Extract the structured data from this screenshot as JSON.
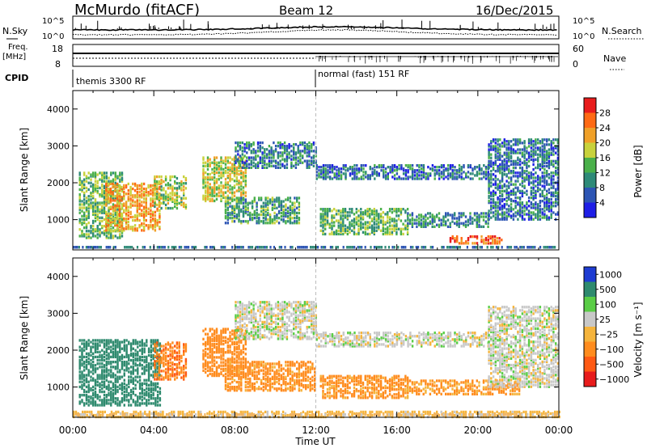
{
  "header": {
    "station": "McMurdo (fitACF)",
    "beam": "Beam 12",
    "date": "16/Dec/2015"
  },
  "status_panels": {
    "nsky_label": "N.Sky",
    "nsearch_label": "N.Search",
    "nsky_ticks": [
      "10^5",
      "10^0"
    ],
    "nsearch_ticks": [
      "10^5",
      "10^0"
    ],
    "freq_label": "Freq.",
    "freq_unit": "[MHz]",
    "freq_ticks": [
      "18",
      "8"
    ],
    "nave_label": "Nave",
    "nave_ticks": [
      "60",
      "0"
    ],
    "cpid_label": "CPID",
    "cpid_modes": [
      {
        "label": "themis 3300 RF",
        "start_hour": 0
      },
      {
        "label": "normal (fast) 151 RF",
        "start_hour": 12
      }
    ]
  },
  "colors": {
    "power": [
      "#1e1ee6",
      "#2d55b4",
      "#2e8a78",
      "#4ab04a",
      "#c8d23c",
      "#f0a028",
      "#ff6a14",
      "#e81c1c"
    ],
    "velocity": [
      "#e81c1c",
      "#ff5a14",
      "#ff8c1e",
      "#f5b43c",
      "#c8c8c8",
      "#5acd46",
      "#2e8a6e",
      "#1e3cd2"
    ],
    "ground": "#f0b464"
  },
  "chart_data": [
    {
      "type": "heatmap",
      "name": "power",
      "xlabel": "",
      "ylabel": "Slant Range [km]",
      "x_ticks": [
        "00:00",
        "04:00",
        "08:00",
        "12:00",
        "16:00",
        "20:00",
        "00:00"
      ],
      "xlim_hours": [
        0,
        24
      ],
      "ylim_km": [
        180,
        4500
      ],
      "y_ticks": [
        1000,
        2000,
        3000,
        4000
      ],
      "colorbar": {
        "label": "Power [dB]",
        "levels": [
          0,
          4,
          8,
          12,
          16,
          20,
          24,
          28,
          30
        ],
        "tick_labels": [
          "4",
          "8",
          "12",
          "16",
          "20",
          "24",
          "28"
        ]
      },
      "echo_regions": [
        {
          "t0": 0.3,
          "t1": 2.4,
          "r0": 500,
          "r1": 2300,
          "db": 14
        },
        {
          "t0": 1.6,
          "t1": 4.3,
          "r0": 700,
          "r1": 2000,
          "db": 22
        },
        {
          "t0": 4.0,
          "t1": 5.6,
          "r0": 1300,
          "r1": 2200,
          "db": 16
        },
        {
          "t0": 6.4,
          "t1": 8.6,
          "r0": 1500,
          "r1": 2700,
          "db": 18
        },
        {
          "t0": 7.5,
          "t1": 11.2,
          "r0": 900,
          "r1": 1600,
          "db": 12
        },
        {
          "t0": 8.0,
          "t1": 12.0,
          "r0": 2400,
          "r1": 3100,
          "db": 9
        },
        {
          "t0": 12.0,
          "t1": 20.5,
          "r0": 2100,
          "r1": 2500,
          "db": 8
        },
        {
          "t0": 12.2,
          "t1": 16.5,
          "r0": 600,
          "r1": 1300,
          "db": 14
        },
        {
          "t0": 16.5,
          "t1": 20.5,
          "r0": 800,
          "r1": 1200,
          "db": 10
        },
        {
          "t0": 20.5,
          "t1": 24.0,
          "r0": 1000,
          "r1": 3200,
          "db": 8
        },
        {
          "t0": 18.6,
          "t1": 21.2,
          "r0": 350,
          "r1": 550,
          "db": 26
        }
      ]
    },
    {
      "type": "heatmap",
      "name": "velocity",
      "xlabel": "Time UT",
      "ylabel": "Slant Range [km]",
      "x_ticks": [
        "00:00",
        "04:00",
        "08:00",
        "12:00",
        "16:00",
        "20:00",
        "00:00"
      ],
      "xlim_hours": [
        0,
        24
      ],
      "ylim_km": [
        180,
        4500
      ],
      "y_ticks": [
        1000,
        2000,
        3000,
        4000
      ],
      "colorbar": {
        "label": "Velocity [m s⁻¹]",
        "tick_labels": [
          "1000",
          "500",
          "100",
          "25",
          "−25",
          "−100",
          "−500",
          "−1000"
        ]
      },
      "echo_regions": [
        {
          "t0": 0.3,
          "t1": 4.3,
          "r0": 500,
          "r1": 2300,
          "v": 300
        },
        {
          "t0": 4.0,
          "t1": 5.6,
          "r0": 1200,
          "r1": 2200,
          "v": -400
        },
        {
          "t0": 6.4,
          "t1": 8.6,
          "r0": 1300,
          "r1": 2600,
          "v": -300
        },
        {
          "t0": 7.5,
          "t1": 12.0,
          "r0": 900,
          "r1": 1700,
          "v": -150
        },
        {
          "t0": 8.0,
          "t1": 12.0,
          "r0": 2300,
          "r1": 3300,
          "v": 0
        },
        {
          "t0": 12.0,
          "t1": 20.5,
          "r0": 2100,
          "r1": 2500,
          "v": 0
        },
        {
          "t0": 12.2,
          "t1": 16.5,
          "r0": 700,
          "r1": 1300,
          "v": -150
        },
        {
          "t0": 16.5,
          "t1": 22.0,
          "r0": 800,
          "r1": 1200,
          "v": -120
        },
        {
          "t0": 20.5,
          "t1": 24.0,
          "r0": 1000,
          "r1": 3200,
          "v": 0
        },
        {
          "t0": 0.0,
          "t1": 24.0,
          "r0": 180,
          "r1": 320,
          "v": -60
        }
      ]
    }
  ]
}
